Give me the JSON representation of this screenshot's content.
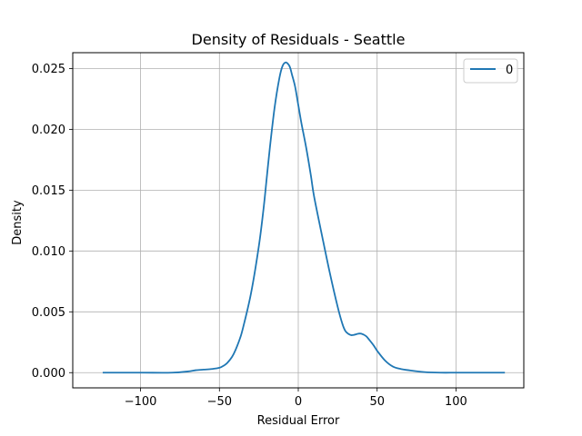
{
  "chart_data": {
    "type": "line",
    "title": "Density of Residuals - Seattle",
    "xlabel": "Residual Error",
    "ylabel": "Density",
    "xlim": [
      -143,
      143
    ],
    "ylim": [
      -0.00125,
      0.0263
    ],
    "grid": true,
    "legend_position": "top-right",
    "x_ticks": [
      -100,
      -50,
      0,
      50,
      100
    ],
    "x_tick_labels": [
      "−100",
      "−50",
      "0",
      "50",
      "100"
    ],
    "y_ticks": [
      0.0,
      0.005,
      0.01,
      0.015,
      0.02,
      0.025
    ],
    "y_tick_labels": [
      "0.000",
      "0.005",
      "0.010",
      "0.015",
      "0.020",
      "0.025"
    ],
    "series": [
      {
        "name": "0",
        "color": "#1f77b4",
        "x": [
          -124,
          -100,
          -80,
          -70,
          -65,
          -60,
          -55,
          -50,
          -47,
          -45,
          -42,
          -40,
          -37,
          -35,
          -30,
          -25,
          -22,
          -20,
          -18,
          -15,
          -12,
          -10,
          -8,
          -6,
          -5,
          -4,
          -2,
          0,
          2,
          5,
          8,
          10,
          15,
          20,
          25,
          28,
          30,
          33,
          35,
          38,
          40,
          43,
          45,
          48,
          50,
          55,
          60,
          65,
          70,
          80,
          90,
          100,
          110,
          120,
          131
        ],
        "y": [
          0.0,
          0.0,
          0.0,
          0.0001,
          0.0002,
          0.00025,
          0.0003,
          0.0004,
          0.0006,
          0.0008,
          0.0013,
          0.0018,
          0.0028,
          0.0037,
          0.0065,
          0.0104,
          0.0135,
          0.016,
          0.0185,
          0.0218,
          0.0242,
          0.0252,
          0.0255,
          0.0253,
          0.025,
          0.0245,
          0.0235,
          0.022,
          0.0205,
          0.0185,
          0.0162,
          0.0145,
          0.0113,
          0.0082,
          0.0054,
          0.004,
          0.0034,
          0.0031,
          0.0031,
          0.0032,
          0.0032,
          0.003,
          0.0027,
          0.0022,
          0.0018,
          0.001,
          0.0005,
          0.0003,
          0.0002,
          5e-05,
          0.0,
          0.0,
          0.0,
          0.0,
          0.0
        ]
      }
    ]
  }
}
